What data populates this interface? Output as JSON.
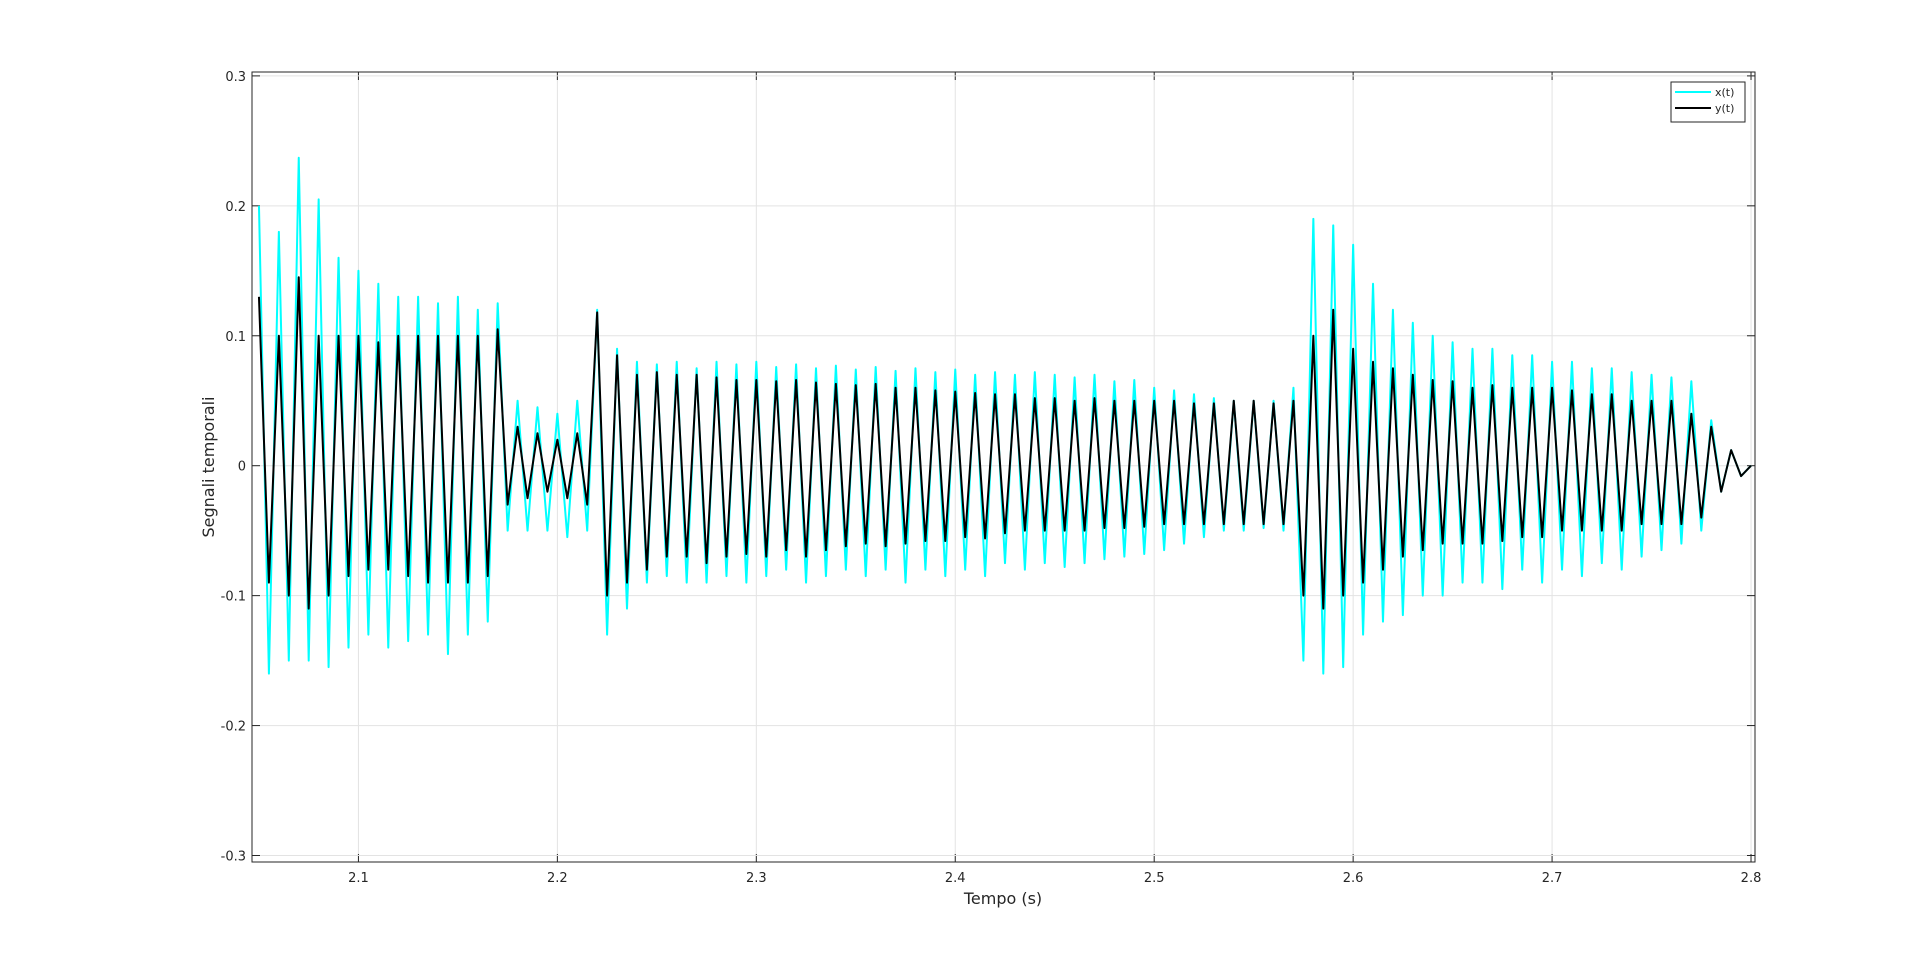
{
  "chart_data": {
    "type": "line",
    "xlabel": "Tempo (s)",
    "ylabel": "Segnali temporali",
    "xlim": [
      2.0465,
      2.802
    ],
    "ylim": [
      -0.305,
      0.303
    ],
    "xticks": [
      2.1,
      2.2,
      2.3,
      2.4,
      2.5,
      2.6,
      2.7,
      2.8
    ],
    "yticks": [
      -0.3,
      -0.2,
      -0.1,
      0,
      0.1,
      0.2,
      0.3
    ],
    "grid": true,
    "legend": "top-right",
    "x": [
      2.05,
      2.055,
      2.06,
      2.065,
      2.07,
      2.075,
      2.08,
      2.085,
      2.09,
      2.095,
      2.1,
      2.105,
      2.11,
      2.115,
      2.12,
      2.125,
      2.13,
      2.135,
      2.14,
      2.145,
      2.15,
      2.155,
      2.16,
      2.165,
      2.17,
      2.175,
      2.18,
      2.185,
      2.19,
      2.195,
      2.2,
      2.205,
      2.21,
      2.215,
      2.22,
      2.225,
      2.23,
      2.235,
      2.24,
      2.245,
      2.25,
      2.255,
      2.26,
      2.265,
      2.27,
      2.275,
      2.28,
      2.285,
      2.29,
      2.295,
      2.3,
      2.305,
      2.31,
      2.315,
      2.32,
      2.325,
      2.33,
      2.335,
      2.34,
      2.345,
      2.35,
      2.355,
      2.36,
      2.365,
      2.37,
      2.375,
      2.38,
      2.385,
      2.39,
      2.395,
      2.4,
      2.405,
      2.41,
      2.415,
      2.42,
      2.425,
      2.43,
      2.435,
      2.44,
      2.445,
      2.45,
      2.455,
      2.46,
      2.465,
      2.47,
      2.475,
      2.48,
      2.485,
      2.49,
      2.495,
      2.5,
      2.505,
      2.51,
      2.515,
      2.52,
      2.525,
      2.53,
      2.535,
      2.54,
      2.545,
      2.55,
      2.555,
      2.56,
      2.565,
      2.57,
      2.575,
      2.58,
      2.585,
      2.59,
      2.595,
      2.6,
      2.605,
      2.61,
      2.615,
      2.62,
      2.625,
      2.63,
      2.635,
      2.64,
      2.645,
      2.65,
      2.655,
      2.66,
      2.665,
      2.67,
      2.675,
      2.68,
      2.685,
      2.69,
      2.695,
      2.7,
      2.705,
      2.71,
      2.715,
      2.72,
      2.725,
      2.73,
      2.735,
      2.74,
      2.745,
      2.75,
      2.755,
      2.76,
      2.765,
      2.77,
      2.775,
      2.78,
      2.785,
      2.79,
      2.795,
      2.8
    ],
    "series": [
      {
        "name": "x(t)",
        "color": "#00ffff",
        "values": [
          0.2,
          -0.16,
          0.18,
          -0.15,
          0.237,
          -0.15,
          0.205,
          -0.155,
          0.16,
          -0.14,
          0.15,
          -0.13,
          0.14,
          -0.14,
          0.13,
          -0.135,
          0.13,
          -0.13,
          0.125,
          -0.145,
          0.13,
          -0.13,
          0.12,
          -0.12,
          0.125,
          -0.05,
          0.05,
          -0.05,
          0.045,
          -0.05,
          0.04,
          -0.055,
          0.05,
          -0.05,
          0.12,
          -0.13,
          0.09,
          -0.11,
          0.08,
          -0.09,
          0.078,
          -0.085,
          0.08,
          -0.09,
          0.075,
          -0.09,
          0.08,
          -0.085,
          0.078,
          -0.09,
          0.08,
          -0.085,
          0.076,
          -0.08,
          0.078,
          -0.09,
          0.075,
          -0.085,
          0.077,
          -0.08,
          0.074,
          -0.085,
          0.076,
          -0.08,
          0.073,
          -0.09,
          0.075,
          -0.08,
          0.072,
          -0.085,
          0.074,
          -0.08,
          0.07,
          -0.085,
          0.072,
          -0.075,
          0.07,
          -0.08,
          0.072,
          -0.075,
          0.07,
          -0.078,
          0.068,
          -0.075,
          0.07,
          -0.072,
          0.065,
          -0.07,
          0.066,
          -0.068,
          0.06,
          -0.065,
          0.058,
          -0.06,
          0.055,
          -0.055,
          0.052,
          -0.05,
          0.05,
          -0.05,
          0.05,
          -0.048,
          0.05,
          -0.05,
          0.06,
          -0.15,
          0.19,
          -0.16,
          0.185,
          -0.155,
          0.17,
          -0.13,
          0.14,
          -0.12,
          0.12,
          -0.115,
          0.11,
          -0.1,
          0.1,
          -0.1,
          0.095,
          -0.09,
          0.09,
          -0.09,
          0.09,
          -0.095,
          0.085,
          -0.08,
          0.085,
          -0.09,
          0.08,
          -0.08,
          0.08,
          -0.085,
          0.075,
          -0.075,
          0.075,
          -0.08,
          0.072,
          -0.07,
          0.07,
          -0.065,
          0.068,
          -0.06,
          0.065,
          -0.05,
          0.035,
          -0.02,
          0.012,
          -0.008,
          0
        ]
      },
      {
        "name": "y(t)",
        "color": "#000000",
        "values": [
          0.13,
          -0.09,
          0.1,
          -0.1,
          0.145,
          -0.11,
          0.1,
          -0.1,
          0.1,
          -0.085,
          0.1,
          -0.08,
          0.095,
          -0.08,
          0.1,
          -0.085,
          0.1,
          -0.09,
          0.1,
          -0.09,
          0.1,
          -0.09,
          0.1,
          -0.085,
          0.105,
          -0.03,
          0.03,
          -0.025,
          0.025,
          -0.02,
          0.02,
          -0.025,
          0.025,
          -0.03,
          0.118,
          -0.1,
          0.085,
          -0.09,
          0.07,
          -0.08,
          0.072,
          -0.07,
          0.07,
          -0.07,
          0.07,
          -0.075,
          0.068,
          -0.07,
          0.066,
          -0.068,
          0.066,
          -0.07,
          0.065,
          -0.065,
          0.066,
          -0.07,
          0.064,
          -0.065,
          0.063,
          -0.062,
          0.062,
          -0.06,
          0.063,
          -0.062,
          0.06,
          -0.06,
          0.06,
          -0.058,
          0.058,
          -0.058,
          0.057,
          -0.055,
          0.056,
          -0.056,
          0.055,
          -0.052,
          0.055,
          -0.05,
          0.052,
          -0.05,
          0.052,
          -0.05,
          0.05,
          -0.05,
          0.052,
          -0.048,
          0.05,
          -0.048,
          0.05,
          -0.047,
          0.05,
          -0.045,
          0.05,
          -0.045,
          0.048,
          -0.045,
          0.048,
          -0.045,
          0.05,
          -0.045,
          0.05,
          -0.045,
          0.048,
          -0.045,
          0.05,
          -0.1,
          0.1,
          -0.11,
          0.12,
          -0.1,
          0.09,
          -0.09,
          0.08,
          -0.08,
          0.075,
          -0.07,
          0.07,
          -0.065,
          0.066,
          -0.06,
          0.065,
          -0.06,
          0.06,
          -0.06,
          0.062,
          -0.058,
          0.06,
          -0.055,
          0.06,
          -0.055,
          0.06,
          -0.05,
          0.058,
          -0.05,
          0.055,
          -0.05,
          0.055,
          -0.05,
          0.05,
          -0.045,
          0.05,
          -0.045,
          0.05,
          -0.045,
          0.04,
          -0.04,
          0.03,
          -0.02,
          0.012,
          -0.008,
          0
        ]
      }
    ]
  }
}
